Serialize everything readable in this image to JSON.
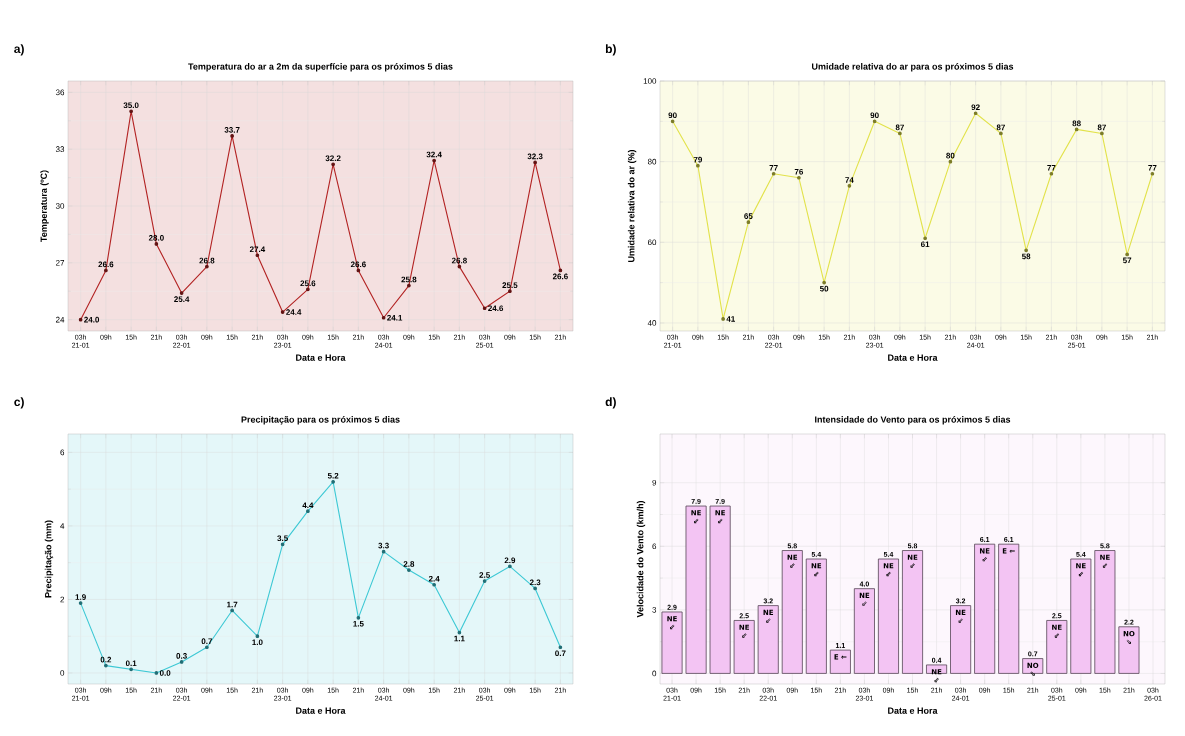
{
  "chart_data": [
    {
      "type": "line",
      "title": "Temperatura do ar a 2m da superfície para os próximos 5 dias",
      "xlabel": "Data e Hora",
      "ylabel": "Temperatura (ºC)",
      "annotations": [
        "a)"
      ],
      "categories": [
        "03h 21-01",
        "09h",
        "15h",
        "21h",
        "03h 22-01",
        "09h",
        "15h",
        "21h",
        "03h 23-01",
        "09h",
        "15h",
        "21h",
        "03h 24-01",
        "09h",
        "15h",
        "21h",
        "03h 25-01",
        "09h",
        "15h",
        "21h"
      ],
      "values": [
        24.0,
        26.6,
        35.0,
        28.0,
        25.4,
        26.8,
        33.7,
        27.4,
        24.4,
        25.6,
        32.2,
        26.6,
        24.1,
        25.8,
        32.4,
        26.8,
        24.6,
        25.5,
        32.3,
        26.6
      ],
      "value_labels": [
        "24.0",
        "26.6",
        "35.0",
        "28.0",
        "25.4",
        "26.8",
        "33.7",
        "27.4",
        "24.4",
        "25.6",
        "32.2",
        "26.6",
        "24.1",
        "25.8",
        "32.4",
        "26.8",
        "24.6",
        "25.5",
        "32.3",
        "26.6"
      ],
      "color": "#b22222",
      "marker": "circle",
      "grid": true,
      "ylim": [
        23.4,
        36.6
      ],
      "yticks": [
        24,
        27,
        30,
        33,
        36
      ]
    },
    {
      "type": "line",
      "title": "Umidade relativa do ar para os próximos 5 dias",
      "xlabel": "Data e Hora",
      "ylabel": "Umidade relativa do ar (%)",
      "annotations": [
        "b)"
      ],
      "categories": [
        "03h 21-01",
        "09h",
        "15h",
        "21h",
        "03h 22-01",
        "09h",
        "15h",
        "21h",
        "03h 23-01",
        "09h",
        "15h",
        "21h",
        "03h 24-01",
        "09h",
        "15h",
        "21h",
        "03h 25-01",
        "09h",
        "15h",
        "21h"
      ],
      "values": [
        90,
        79,
        41,
        65,
        77,
        76,
        50,
        74,
        90,
        87,
        61,
        80,
        92,
        87,
        58,
        77,
        88,
        87,
        57,
        77
      ],
      "color": "#e2e24a",
      "marker": "circle",
      "data_labels": true,
      "grid": true,
      "ylim": [
        38,
        100
      ],
      "yticks": [
        40,
        60,
        80,
        100
      ]
    },
    {
      "type": "line",
      "title": "Precipitação para os próximos 5 dias",
      "xlabel": "Data e Hora",
      "ylabel": "Precipitação (mm)",
      "annotations": [
        "c)"
      ],
      "categories": [
        "03h 21-01",
        "09h",
        "15h",
        "21h",
        "03h 22-01",
        "09h",
        "15h",
        "21h",
        "03h 23-01",
        "09h",
        "15h",
        "21h",
        "03h 24-01",
        "09h",
        "15h",
        "21h",
        "03h 25-01",
        "09h",
        "15h",
        "21h"
      ],
      "values": [
        1.9,
        0.2,
        0.1,
        0.0,
        0.3,
        0.7,
        1.7,
        1.0,
        3.5,
        4.4,
        5.2,
        1.5,
        3.3,
        2.8,
        2.4,
        1.1,
        2.5,
        2.9,
        2.3,
        0.7
      ],
      "value_labels": [
        "1.9",
        "0.2",
        "0.1",
        "0.0",
        "0.3",
        "0.7",
        "1.7",
        "1.0",
        "3.5",
        "4.4",
        "5.2",
        "1.5",
        "3.3",
        "2.8",
        "2.4",
        "1.1",
        "2.5",
        "2.9",
        "2.3",
        "0.7"
      ],
      "color": "#3cc8d4",
      "marker": "circle",
      "grid": true,
      "ylim": [
        -0.3,
        6.5
      ],
      "yticks": [
        0,
        2,
        4,
        6
      ]
    },
    {
      "type": "bar",
      "title": "Intensidade do Vento para os próximos 5 dias",
      "xlabel": "Data e Hora",
      "ylabel": "Velocidade do Vento (km/h)",
      "annotations": [
        "d)",
        "NE ⇙",
        "NE ⇙",
        "NE ⇙",
        "NE ⇙",
        "NE ⇙",
        "NE ⇙",
        "NE ⇙",
        "E ⇐",
        "NE ⇙",
        "NE ⇙",
        "NE ⇙",
        "NE ⇙",
        "NE ⇙",
        "NE ⇙",
        "E ⇐",
        "NO ⇘",
        "NE ⇙",
        "NE ⇙",
        "NE ⇙",
        "NO ⇘"
      ],
      "categories": [
        "03h 21-01",
        "09h",
        "15h",
        "21h",
        "03h 22-01",
        "09h",
        "15h",
        "21h",
        "03h 23-01",
        "09h",
        "15h",
        "21h",
        "03h 24-01",
        "09h",
        "15h",
        "21h",
        "03h 25-01",
        "09h",
        "15h",
        "21h",
        "03h 26-01"
      ],
      "values": [
        2.9,
        7.9,
        7.9,
        2.5,
        3.2,
        5.8,
        5.4,
        1.1,
        4.0,
        5.4,
        5.8,
        0.4,
        3.2,
        6.1,
        6.1,
        0.7,
        2.5,
        5.4,
        5.8,
        2.2,
        null
      ],
      "value_labels": [
        "2.9",
        "7.9",
        "7.9",
        "2.5",
        "3.2",
        "5.8",
        "5.4",
        "1.1",
        "4.0",
        "5.4",
        "5.8",
        "0.4",
        "3.2",
        "6.1",
        "6.1",
        "0.7",
        "2.5",
        "5.4",
        "5.8",
        "2.2",
        null
      ],
      "color": "#f3c4f3",
      "grid": true,
      "ylim": [
        -0.5,
        11.3
      ],
      "yticks": [
        0,
        3,
        6,
        9
      ]
    }
  ]
}
